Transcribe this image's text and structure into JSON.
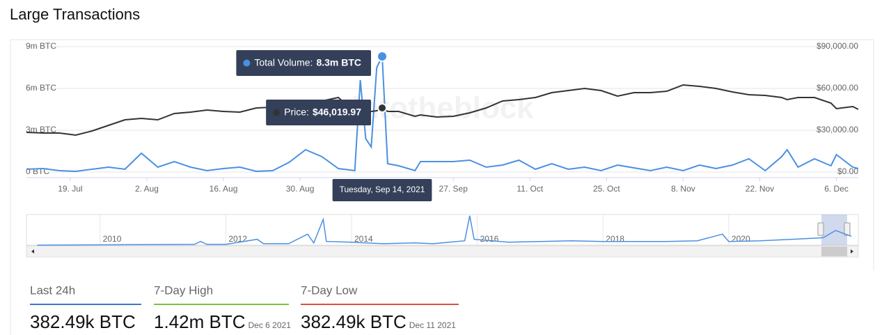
{
  "header": {
    "title": "Large Transactions"
  },
  "chart_data": {
    "type": "line",
    "watermark": "intotheblock",
    "x": [
      "2021-07-11",
      "2021-07-14",
      "2021-07-17",
      "2021-07-20",
      "2021-07-23",
      "2021-07-26",
      "2021-07-29",
      "2021-08-01",
      "2021-08-04",
      "2021-08-07",
      "2021-08-10",
      "2021-08-13",
      "2021-08-16",
      "2021-08-19",
      "2021-08-22",
      "2021-08-25",
      "2021-08-28",
      "2021-08-31",
      "2021-09-03",
      "2021-09-06",
      "2021-09-09",
      "2021-09-10",
      "2021-09-11",
      "2021-09-12",
      "2021-09-13",
      "2021-09-14",
      "2021-09-15",
      "2021-09-17",
      "2021-09-20",
      "2021-09-21",
      "2021-09-24",
      "2021-09-27",
      "2021-09-30",
      "2021-10-03",
      "2021-10-06",
      "2021-10-09",
      "2021-10-12",
      "2021-10-15",
      "2021-10-18",
      "2021-10-21",
      "2021-10-24",
      "2021-10-27",
      "2021-10-30",
      "2021-11-02",
      "2021-11-05",
      "2021-11-08",
      "2021-11-11",
      "2021-11-14",
      "2021-11-17",
      "2021-11-20",
      "2021-11-23",
      "2021-11-26",
      "2021-11-27",
      "2021-11-29",
      "2021-12-02",
      "2021-12-05",
      "2021-12-06",
      "2021-12-09",
      "2021-12-10"
    ],
    "xlim": [
      "2021-07-11",
      "2021-12-10"
    ],
    "xticks": [
      {
        "value": "2021-07-19",
        "label": "19. Jul"
      },
      {
        "value": "2021-08-02",
        "label": "2. Aug"
      },
      {
        "value": "2021-08-16",
        "label": "16. Aug"
      },
      {
        "value": "2021-08-30",
        "label": "30. Aug"
      },
      {
        "value": "2021-09-27",
        "label": "27. Sep"
      },
      {
        "value": "2021-10-11",
        "label": "11. Oct"
      },
      {
        "value": "2021-10-25",
        "label": "25. Oct"
      },
      {
        "value": "2021-11-08",
        "label": "8. Nov"
      },
      {
        "value": "2021-11-22",
        "label": "22. Nov"
      },
      {
        "value": "2021-12-06",
        "label": "6. Dec"
      }
    ],
    "ylim": [
      0,
      9000000
    ],
    "yticks": [
      {
        "value": 0,
        "label": "0 BTC"
      },
      {
        "value": 3000000,
        "label": "3m BTC"
      },
      {
        "value": 6000000,
        "label": "6m BTC"
      },
      {
        "value": 9000000,
        "label": "9m BTC"
      }
    ],
    "y2lim": [
      0,
      90000
    ],
    "y2ticks": [
      {
        "value": 0,
        "label": "$0.00"
      },
      {
        "value": 30000,
        "label": "$30,000.00"
      },
      {
        "value": 60000,
        "label": "$60,000.00"
      },
      {
        "value": 90000,
        "label": "$90,000.00"
      }
    ],
    "grid": true,
    "series": [
      {
        "color": "#4a90e2",
        "values": [
          200000,
          250000,
          100000,
          50000,
          200000,
          350000,
          200000,
          1350000,
          350000,
          750000,
          350000,
          100000,
          250000,
          350000,
          50000,
          100000,
          700000,
          1600000,
          1100000,
          250000,
          100000,
          6600000,
          2400000,
          1800000,
          7500000,
          8300000,
          600000,
          450000,
          100000,
          750000,
          750000,
          750000,
          850000,
          350000,
          500000,
          850000,
          200000,
          600000,
          200000,
          350000,
          100000,
          500000,
          300000,
          100000,
          350000,
          100000,
          500000,
          250000,
          500000,
          950000,
          100000,
          1100000,
          1600000,
          350000,
          950000,
          450000,
          1250000,
          350000,
          250000
        ],
        "value_labels": [
          null,
          null,
          null,
          null,
          null,
          null,
          null,
          null,
          null,
          null,
          null,
          null,
          null,
          null,
          null,
          null,
          null,
          null,
          null,
          null,
          null,
          null,
          null,
          null,
          null,
          "8.3m BTC",
          null,
          null,
          null,
          null,
          null,
          null,
          null,
          null,
          null,
          null,
          null,
          null,
          null,
          null,
          null,
          null,
          null,
          null,
          null,
          null,
          null,
          null,
          null,
          null,
          null,
          null,
          null,
          null,
          null,
          null,
          null,
          null,
          null
        ]
      },
      {
        "color": "#333333",
        "axis": "y2",
        "values": [
          28500,
          28000,
          28000,
          26500,
          29500,
          33500,
          37500,
          38500,
          37500,
          42000,
          43000,
          44500,
          43500,
          43000,
          46000,
          46500,
          46000,
          47500,
          51000,
          53500,
          43000,
          43000,
          43500,
          43500,
          44000,
          46019.97,
          43500,
          43500,
          40000,
          41000,
          39500,
          40000,
          42500,
          46000,
          51000,
          52000,
          53500,
          57000,
          58500,
          60000,
          58500,
          54500,
          57000,
          57000,
          58000,
          62500,
          61500,
          60000,
          57500,
          55500,
          55000,
          53500,
          52000,
          53500,
          53500,
          49500,
          45500,
          47000,
          45000
        ],
        "value_labels": [
          null,
          null,
          null,
          null,
          null,
          null,
          null,
          null,
          null,
          null,
          null,
          null,
          null,
          null,
          null,
          null,
          null,
          null,
          null,
          null,
          null,
          null,
          null,
          null,
          null,
          "$46,019.97",
          null,
          null,
          null,
          null,
          null,
          null,
          null,
          null,
          null,
          null,
          null,
          null,
          null,
          null,
          null,
          null,
          null,
          null,
          null,
          null,
          null,
          null,
          null,
          null,
          null,
          null,
          null,
          null,
          null,
          null,
          null,
          null,
          null
        ]
      }
    ],
    "tooltip": {
      "index": 25,
      "x_label": "Tuesday, Sep 14, 2021",
      "labels": [
        "Total Volume:",
        "Price:"
      ]
    }
  },
  "navigator": {
    "x": [
      2009.0,
      2011.5,
      2011.6,
      2011.7,
      2012.0,
      2012.5,
      2012.6,
      2013.0,
      2013.3,
      2013.4,
      2013.55,
      2013.6,
      2014.0,
      2014.5,
      2015.0,
      2015.3,
      2015.8,
      2015.88,
      2015.95,
      2016.5,
      2017.0,
      2017.5,
      2018.0,
      2018.5,
      2019.0,
      2019.5,
      2019.9,
      2020.0,
      2020.5,
      2021.0,
      2021.5,
      2021.7,
      2021.95
    ],
    "values": [
      0,
      600000,
      3000000,
      600000,
      600000,
      4800000,
      1200000,
      1200000,
      9000000,
      1800000,
      21000000,
      3000000,
      2400000,
      1200000,
      1800000,
      1200000,
      3600000,
      24000000,
      4800000,
      2400000,
      3000000,
      3600000,
      3000000,
      3000000,
      3000000,
      3600000,
      9000000,
      3000000,
      3600000,
      4800000,
      6000000,
      12000000,
      7200000
    ],
    "xlim": [
      2008.83,
      2022.06
    ],
    "ylim": [
      0,
      25000000
    ],
    "xticks": [
      2010,
      2012,
      2014,
      2016,
      2018,
      2020
    ],
    "color": "#4a90e2"
  },
  "stats": [
    {
      "label": "Last 24h",
      "value": "382.49k BTC",
      "color": "#3b78c9"
    },
    {
      "label": "7-Day High",
      "value": "1.42m BTC",
      "date": "Dec 6 2021",
      "color": "#7dc142"
    },
    {
      "label": "7-Day Low",
      "value": "382.49k BTC",
      "date": "Dec 11 2021",
      "color": "#d9503f"
    }
  ]
}
